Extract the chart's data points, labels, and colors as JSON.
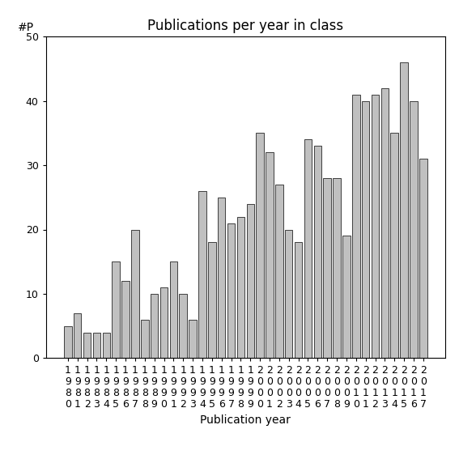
{
  "title": "Publications per year in class",
  "xlabel": "Publication year",
  "ylabel": "#P",
  "ylim": [
    0,
    50
  ],
  "yticks": [
    0,
    10,
    20,
    30,
    40,
    50
  ],
  "years": [
    "1980",
    "1981",
    "1982",
    "1983",
    "1984",
    "1985",
    "1986",
    "1987",
    "1988",
    "1989",
    "1990",
    "1991",
    "1992",
    "1993",
    "1994",
    "1995",
    "1996",
    "1997",
    "1998",
    "1999",
    "2000",
    "2001",
    "2002",
    "2003",
    "2004",
    "2005",
    "2006",
    "2007",
    "2008",
    "2009",
    "2010",
    "2011",
    "2012",
    "2013",
    "2014",
    "2015",
    "2016",
    "2017"
  ],
  "values": [
    5,
    7,
    4,
    4,
    4,
    15,
    12,
    20,
    6,
    10,
    11,
    15,
    10,
    6,
    26,
    18,
    25,
    21,
    22,
    24,
    35,
    32,
    27,
    20,
    18,
    34,
    33,
    28,
    28,
    19,
    41,
    40,
    41,
    42,
    35,
    46,
    40,
    31
  ],
  "bar_color": "#c0c0c0",
  "bar_edge_color": "#000000",
  "bar_edge_width": 0.5,
  "bg_color": "#ffffff",
  "title_fontsize": 12,
  "label_fontsize": 10,
  "tick_fontsize": 9
}
